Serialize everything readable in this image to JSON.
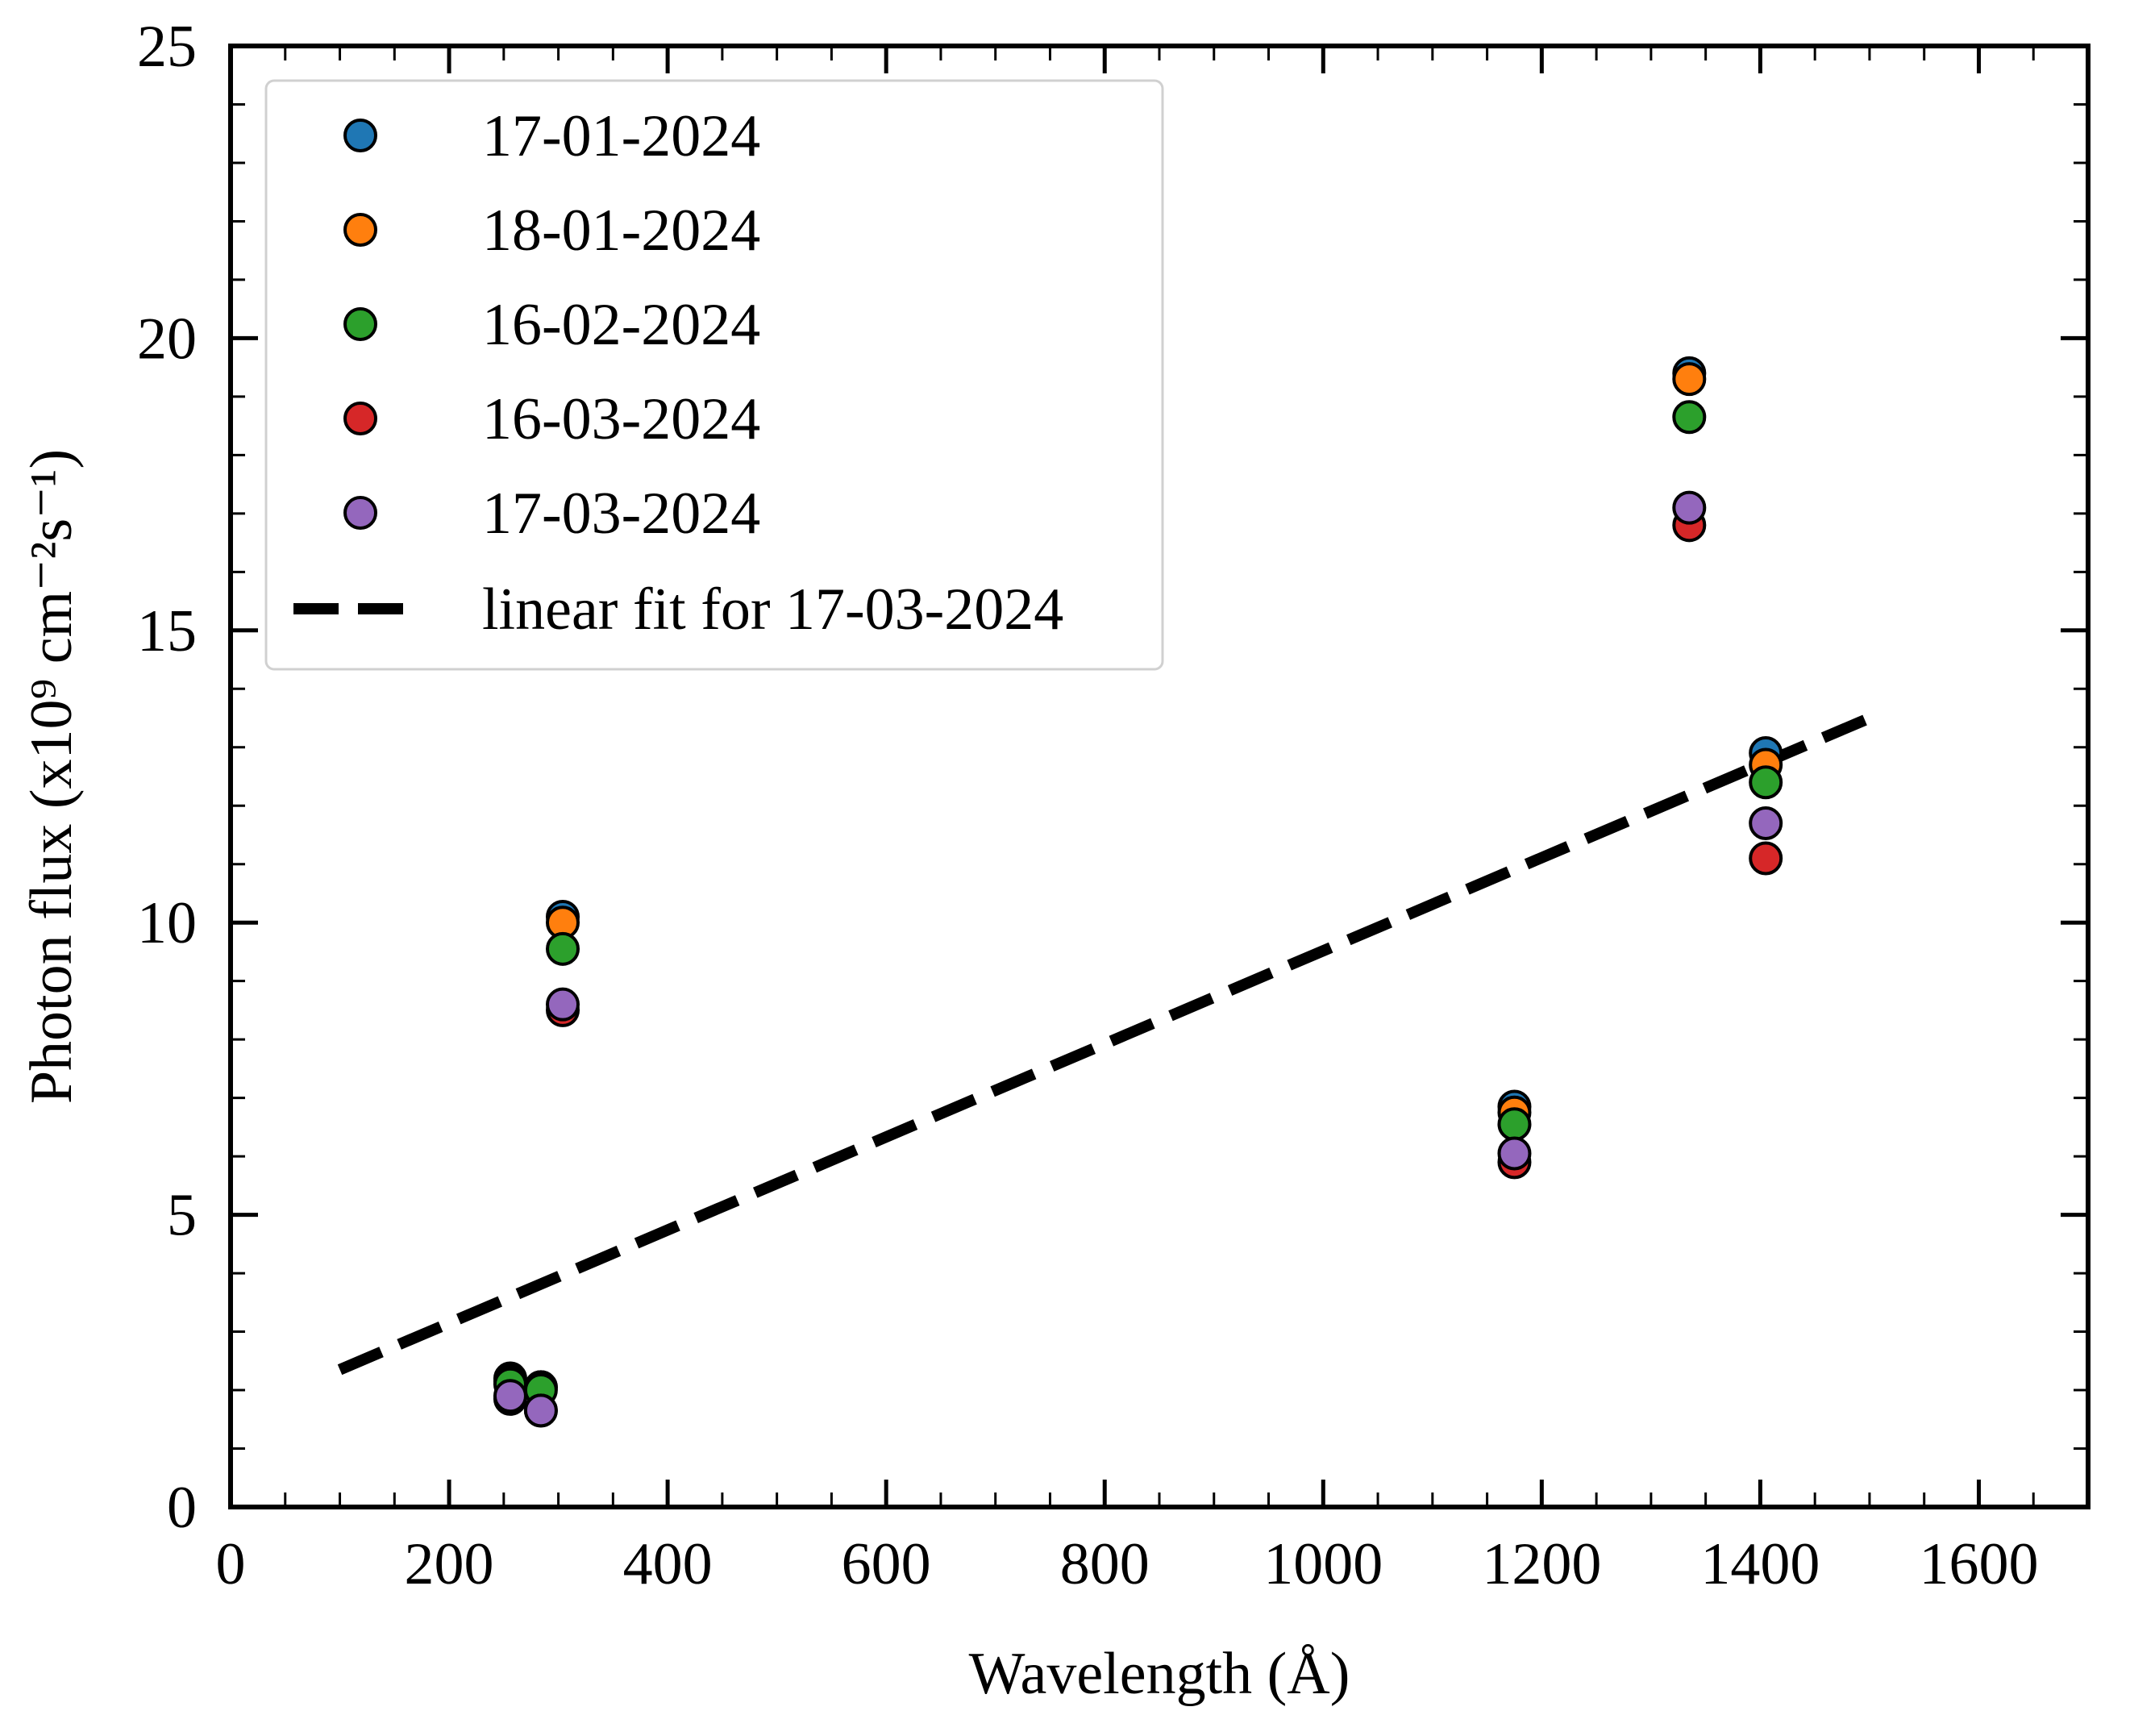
{
  "chart_data": {
    "type": "scatter",
    "title": "",
    "xlabel": "Wavelength (Å)",
    "ylabel": "Photon flux (x10⁹ cm⁻²s⁻¹)",
    "xlim": [
      0,
      1700
    ],
    "ylim": [
      0,
      25
    ],
    "x_ticks": [
      0,
      200,
      400,
      600,
      800,
      1000,
      1200,
      1400,
      1600
    ],
    "y_ticks": [
      0,
      5,
      10,
      15,
      20,
      25
    ],
    "x_tick_labels": [
      "0",
      "200",
      "400",
      "600",
      "800",
      "1000",
      "1200",
      "1400",
      "1600"
    ],
    "y_tick_labels": [
      "0",
      "5",
      "10",
      "15",
      "20",
      "25"
    ],
    "grid": false,
    "legend_position": "top-left",
    "series": [
      {
        "name": "17-01-2024",
        "color": "#1f77b4",
        "x": [
          256,
          284,
          304,
          1175,
          1335,
          1405
        ],
        "y": [
          2.2,
          2.05,
          10.1,
          6.85,
          19.4,
          12.9
        ]
      },
      {
        "name": "18-01-2024",
        "color": "#ff7f0e",
        "x": [
          256,
          284,
          304,
          1175,
          1335,
          1405
        ],
        "y": [
          2.15,
          2.05,
          10.0,
          6.75,
          19.3,
          12.7
        ]
      },
      {
        "name": "16-02-2024",
        "color": "#2ca02c",
        "x": [
          256,
          284,
          304,
          1175,
          1335,
          1405
        ],
        "y": [
          2.1,
          2.0,
          9.55,
          6.55,
          18.65,
          12.4
        ]
      },
      {
        "name": "16-03-2024",
        "color": "#d62728",
        "x": [
          256,
          284,
          304,
          1175,
          1335,
          1405
        ],
        "y": [
          1.85,
          1.65,
          8.5,
          5.9,
          16.8,
          11.1
        ]
      },
      {
        "name": "17-03-2024",
        "color": "#9467bd",
        "x": [
          256,
          284,
          304,
          1175,
          1335,
          1405
        ],
        "y": [
          1.9,
          1.65,
          8.6,
          6.05,
          17.1,
          11.7
        ]
      }
    ],
    "fit_line": {
      "name": "linear fit for 17-03-2024",
      "color": "#000000",
      "style": "dashed",
      "x": [
        100,
        1500
      ],
      "y": [
        2.35,
        13.5
      ]
    }
  }
}
